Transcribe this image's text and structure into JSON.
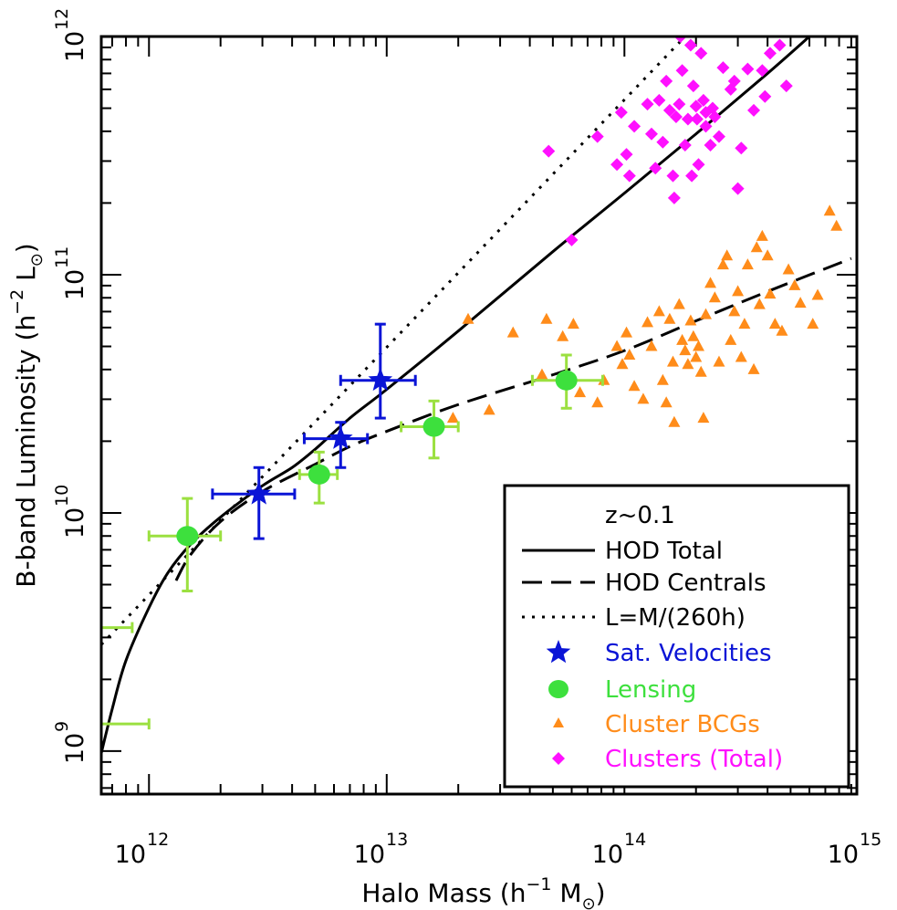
{
  "chart_data": {
    "type": "scatter",
    "title": "",
    "xlabel_main": "Halo Mass (h",
    "xlabel_exp": "−1",
    "xlabel_tail": " M",
    "xlabel_sun": "⊙",
    "xlabel_close": ")",
    "ylabel_main": "B-band Luminosity (h",
    "ylabel_exp": "−2",
    "ylabel_tail": " L",
    "ylabel_sun": "⊙",
    "ylabel_close": ")",
    "x_scale": "log",
    "y_scale": "log",
    "xlim": [
      630000000000.0,
      950000000000000.0
    ],
    "ylim": [
      660000000.0,
      1000000000000.0
    ],
    "grid": false,
    "legend_position": "bottom-right",
    "x_ticks": [
      {
        "value": 1000000000000.0,
        "base": "10",
        "exp": "12"
      },
      {
        "value": 10000000000000.0,
        "base": "10",
        "exp": "13"
      },
      {
        "value": 100000000000000.0,
        "base": "10",
        "exp": "14"
      },
      {
        "value": 1000000000000000.0,
        "base": "10",
        "exp": "15"
      }
    ],
    "y_ticks": [
      {
        "value": 1000000000.0,
        "base": "10",
        "exp": "9"
      },
      {
        "value": 10000000000.0,
        "base": "10",
        "exp": "10"
      },
      {
        "value": 100000000000.0,
        "base": "10",
        "exp": "11"
      },
      {
        "value": 1000000000000.0,
        "base": "10",
        "exp": "12"
      }
    ],
    "legend_title": "z~0.1",
    "colors": {
      "sat": "#0a14d6",
      "lensing": "#3de03d",
      "lensing_err": "#9be040",
      "bcg": "#ff8c1a",
      "clusters": "#ff10ff",
      "line": "#000000"
    },
    "series": [
      {
        "name": "HOD Total",
        "style": "solid",
        "points": [
          [
            630000000000.0,
            980000000.0
          ],
          [
            700000000000.0,
            1500000000.0
          ],
          [
            800000000000.0,
            2400000000.0
          ],
          [
            1000000000000.0,
            4000000000.0
          ],
          [
            1200000000000.0,
            5600000000.0
          ],
          [
            1500000000000.0,
            7400000000.0
          ],
          [
            2000000000000.0,
            9600000000.0
          ],
          [
            3000000000000.0,
            13000000000.0
          ],
          [
            4000000000000.0,
            15500000000.0
          ],
          [
            5000000000000.0,
            18500000000.0
          ],
          [
            7000000000000.0,
            25000000000.0
          ],
          [
            10000000000000.0,
            33000000000.0
          ],
          [
            20000000000000.0,
            58000000000.0
          ],
          [
            50000000000000.0,
            125000000000.0
          ],
          [
            100000000000000.0,
            220000000000.0
          ],
          [
            200000000000000.0,
            390000000000.0
          ],
          [
            400000000000000.0,
            700000000000.0
          ],
          [
            600000000000000.0,
            1000000000000.0
          ]
        ]
      },
      {
        "name": "HOD Centrals",
        "style": "dashed",
        "points": [
          [
            1300000000000.0,
            5200000000.0
          ],
          [
            1500000000000.0,
            6700000000.0
          ],
          [
            2000000000000.0,
            9200000000.0
          ],
          [
            3000000000000.0,
            12300000000.0
          ],
          [
            5000000000000.0,
            16000000000.0
          ],
          [
            7000000000000.0,
            19000000000.0
          ],
          [
            10000000000000.0,
            22000000000.0
          ],
          [
            20000000000000.0,
            28500000000.0
          ],
          [
            50000000000000.0,
            38000000000.0
          ],
          [
            100000000000000.0,
            48000000000.0
          ],
          [
            200000000000000.0,
            64000000000.0
          ],
          [
            400000000000000.0,
            85000000000.0
          ],
          [
            900000000000000.0,
            117000000000.0
          ]
        ]
      },
      {
        "name": "L=M/(260h)",
        "style": "dotted",
        "points": [
          [
            630000000000.0,
            2800000000.0
          ],
          [
            180000000000000.0,
            1000000000000.0
          ]
        ]
      },
      {
        "name": "Sat. Velocities",
        "marker": "star",
        "points": [
          {
            "x": 2900000000000.0,
            "y": 12000000000.0,
            "xerr": [
              1850000000000.0,
              4100000000000.0
            ],
            "yerr": [
              7800000000.0,
              15500000000.0
            ]
          },
          {
            "x": 6400000000000.0,
            "y": 20500000000.0,
            "xerr": [
              4500000000000.0,
              8300000000000.0
            ],
            "yerr": [
              15500000000.0,
              24000000000.0
            ]
          },
          {
            "x": 9400000000000.0,
            "y": 36000000000.0,
            "xerr": [
              6400000000000.0,
              13200000000000.0
            ],
            "yerr": [
              25000000000.0,
              62000000000.0
            ]
          }
        ]
      },
      {
        "name": "Lensing",
        "marker": "circle",
        "points": [
          {
            "x": 1450000000000.0,
            "y": 8000000000.0,
            "xerr": [
              1000000000000.0,
              2000000000000.0
            ],
            "yerr": [
              4700000000.0,
              11500000000.0
            ]
          },
          {
            "x": 5200000000000.0,
            "y": 14500000000.0,
            "xerr": [
              4300000000000.0,
              6200000000000.0
            ],
            "yerr": [
              11000000000.0,
              18000000000.0
            ]
          },
          {
            "x": 15800000000000.0,
            "y": 23000000000.0,
            "xerr": [
              11500000000000.0,
              20000000000000.0
            ],
            "yerr": [
              17000000000.0,
              29500000000.0
            ]
          },
          {
            "x": 57000000000000.0,
            "y": 36000000000.0,
            "xerr": [
              41000000000000.0,
              81000000000000.0
            ],
            "yerr": [
              27500000000.0,
              46000000000.0
            ]
          }
        ],
        "limits": [
          {
            "y": 3300000000.0,
            "xerr": [
              630000000000.0,
              850000000000.0
            ]
          },
          {
            "y": 1300000000.0,
            "xerr": [
              630000000000.0,
              1000000000000.0
            ]
          }
        ]
      },
      {
        "name": "Cluster BCGs",
        "marker": "triangle",
        "points": [
          [
            22000000000000.0,
            65000000000.0
          ],
          [
            19000000000000.0,
            25000000000.0
          ],
          [
            27000000000000.0,
            27000000000.0
          ],
          [
            34000000000000.0,
            57000000000.0
          ],
          [
            47000000000000.0,
            65000000000.0
          ],
          [
            55000000000000.0,
            55000000000.0
          ],
          [
            61000000000000.0,
            62000000000.0
          ],
          [
            65000000000000.0,
            32000000000.0
          ],
          [
            77000000000000.0,
            29000000000.0
          ],
          [
            82000000000000.0,
            36000000000.0
          ],
          [
            93000000000000.0,
            50000000000.0
          ],
          [
            98000000000000.0,
            42000000000.0
          ],
          [
            102000000000000.0,
            57000000000.0
          ],
          [
            105000000000000.0,
            46000000000.0
          ],
          [
            110000000000000.0,
            34000000000.0
          ],
          [
            120000000000000.0,
            30000000000.0
          ],
          [
            125000000000000.0,
            63000000000.0
          ],
          [
            130000000000000.0,
            50000000000.0
          ],
          [
            140000000000000.0,
            70000000000.0
          ],
          [
            145000000000000.0,
            36000000000.0
          ],
          [
            150000000000000.0,
            29000000000.0
          ],
          [
            155000000000000.0,
            65000000000.0
          ],
          [
            160000000000000.0,
            43000000000.0
          ],
          [
            162000000000000.0,
            24000000000.0
          ],
          [
            170000000000000.0,
            75000000000.0
          ],
          [
            175000000000000.0,
            53000000000.0
          ],
          [
            180000000000000.0,
            48000000000.0
          ],
          [
            185000000000000.0,
            42000000000.0
          ],
          [
            190000000000000.0,
            64000000000.0
          ],
          [
            195000000000000.0,
            55000000000.0
          ],
          [
            200000000000000.0,
            45000000000.0
          ],
          [
            205000000000000.0,
            50000000000.0
          ],
          [
            210000000000000.0,
            39000000000.0
          ],
          [
            215000000000000.0,
            25000000000.0
          ],
          [
            220000000000000.0,
            68000000000.0
          ],
          [
            230000000000000.0,
            92000000000.0
          ],
          [
            240000000000000.0,
            80000000000.0
          ],
          [
            250000000000000.0,
            43000000000.0
          ],
          [
            260000000000000.0,
            110000000000.0
          ],
          [
            270000000000000.0,
            120000000000.0
          ],
          [
            280000000000000.0,
            53000000000.0
          ],
          [
            290000000000000.0,
            70000000000.0
          ],
          [
            300000000000000.0,
            85000000000.0
          ],
          [
            310000000000000.0,
            45000000000.0
          ],
          [
            320000000000000.0,
            62000000000.0
          ],
          [
            330000000000000.0,
            110000000000.0
          ],
          [
            350000000000000.0,
            40000000000.0
          ],
          [
            360000000000000.0,
            130000000000.0
          ],
          [
            370000000000000.0,
            75000000000.0
          ],
          [
            380000000000000.0,
            145000000000.0
          ],
          [
            400000000000000.0,
            120000000000.0
          ],
          [
            410000000000000.0,
            83000000000.0
          ],
          [
            430000000000000.0,
            62000000000.0
          ],
          [
            460000000000000.0,
            58000000000.0
          ],
          [
            490000000000000.0,
            105000000000.0
          ],
          [
            520000000000000.0,
            90000000000.0
          ],
          [
            550000000000000.0,
            76000000000.0
          ],
          [
            620000000000000.0,
            62000000000.0
          ],
          [
            650000000000000.0,
            82000000000.0
          ],
          [
            730000000000000.0,
            185000000000.0
          ],
          [
            780000000000000.0,
            160000000000.0
          ],
          [
            45000000000000.0,
            38000000000.0
          ]
        ]
      },
      {
        "name": "Clusters (Total)",
        "marker": "diamond",
        "points": [
          [
            48000000000000.0,
            330000000000.0
          ],
          [
            60000000000000.0,
            140000000000.0
          ],
          [
            77000000000000.0,
            380000000000.0
          ],
          [
            93000000000000.0,
            290000000000.0
          ],
          [
            97000000000000.0,
            480000000000.0
          ],
          [
            102000000000000.0,
            320000000000.0
          ],
          [
            105000000000000.0,
            260000000000.0
          ],
          [
            110000000000000.0,
            420000000000.0
          ],
          [
            125000000000000.0,
            520000000000.0
          ],
          [
            130000000000000.0,
            390000000000.0
          ],
          [
            135000000000000.0,
            280000000000.0
          ],
          [
            140000000000000.0,
            540000000000.0
          ],
          [
            145000000000000.0,
            360000000000.0
          ],
          [
            150000000000000.0,
            650000000000.0
          ],
          [
            155000000000000.0,
            490000000000.0
          ],
          [
            160000000000000.0,
            260000000000.0
          ],
          [
            162000000000000.0,
            210000000000.0
          ],
          [
            170000000000000.0,
            520000000000.0
          ],
          [
            172000000000000.0,
            1000000000000.0
          ],
          [
            175000000000000.0,
            720000000000.0
          ],
          [
            180000000000000.0,
            350000000000.0
          ],
          [
            185000000000000.0,
            450000000000.0
          ],
          [
            190000000000000.0,
            920000000000.0
          ],
          [
            192000000000000.0,
            260000000000.0
          ],
          [
            195000000000000.0,
            620000000000.0
          ],
          [
            200000000000000.0,
            510000000000.0
          ],
          [
            202000000000000.0,
            450000000000.0
          ],
          [
            205000000000000.0,
            290000000000.0
          ],
          [
            210000000000000.0,
            850000000000.0
          ],
          [
            215000000000000.0,
            540000000000.0
          ],
          [
            220000000000000.0,
            420000000000.0
          ],
          [
            230000000000000.0,
            350000000000.0
          ],
          [
            235000000000000.0,
            500000000000.0
          ],
          [
            240000000000000.0,
            460000000000.0
          ],
          [
            250000000000000.0,
            380000000000.0
          ],
          [
            260000000000000.0,
            740000000000.0
          ],
          [
            280000000000000.0,
            600000000000.0
          ],
          [
            290000000000000.0,
            650000000000.0
          ],
          [
            300000000000000.0,
            230000000000.0
          ],
          [
            310000000000000.0,
            340000000000.0
          ],
          [
            330000000000000.0,
            730000000000.0
          ],
          [
            350000000000000.0,
            490000000000.0
          ],
          [
            380000000000000.0,
            720000000000.0
          ],
          [
            390000000000000.0,
            560000000000.0
          ],
          [
            410000000000000.0,
            850000000000.0
          ],
          [
            450000000000000.0,
            920000000000.0
          ],
          [
            480000000000000.0,
            620000000000.0
          ],
          [
            220000000000000.0,
            480000000000.0
          ],
          [
            165000000000000.0,
            460000000000.0
          ]
        ]
      }
    ]
  }
}
